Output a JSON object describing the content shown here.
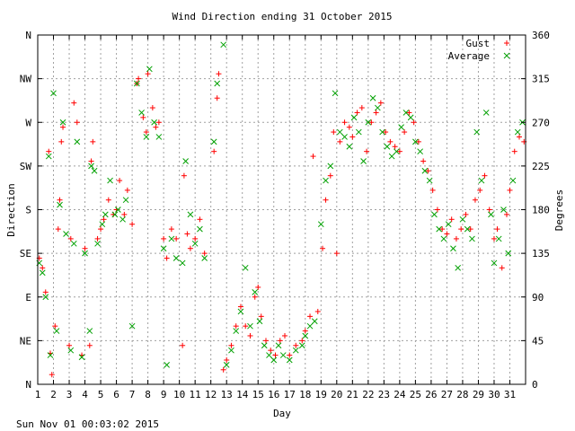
{
  "chart_data": {
    "type": "scatter",
    "title": "Wind Direction ending 31 October 2015",
    "xlabel": "Day",
    "ylabel_left": "Direction",
    "ylabel_right": "Degrees",
    "timestamp": "Sun Nov 01 00:03:02 2015",
    "xlim": [
      1,
      32
    ],
    "ylim": [
      0,
      360
    ],
    "x_ticks": [
      "1",
      "2",
      "3",
      "4",
      "5",
      "6",
      "7",
      "8",
      "9",
      "10",
      "11",
      "12",
      "13",
      "14",
      "15",
      "16",
      "17",
      "18",
      "19",
      "20",
      "21",
      "22",
      "23",
      "24",
      "25",
      "26",
      "27",
      "28",
      "29",
      "30",
      "31"
    ],
    "y_left_ticks": [
      "N",
      "NE",
      "E",
      "SE",
      "S",
      "SW",
      "W",
      "NW",
      "N"
    ],
    "y_right_ticks": [
      "0",
      "45",
      "90",
      "135",
      "180",
      "225",
      "270",
      "315",
      "360"
    ],
    "grid": true,
    "legend_position": "top-right",
    "colors": {
      "gust": "#ff0000",
      "average": "#00a000"
    },
    "series": [
      {
        "name": "Gust",
        "marker": "+",
        "points": [
          [
            1.1,
            130
          ],
          [
            1.3,
            120
          ],
          [
            1.5,
            95
          ],
          [
            1.7,
            240
          ],
          [
            1.8,
            32
          ],
          [
            1.9,
            10
          ],
          [
            2.1,
            60
          ],
          [
            2.3,
            160
          ],
          [
            2.4,
            190
          ],
          [
            2.5,
            250
          ],
          [
            2.6,
            265
          ],
          [
            3.0,
            40
          ],
          [
            3.1,
            150
          ],
          [
            3.3,
            290
          ],
          [
            3.5,
            270
          ],
          [
            3.8,
            30
          ],
          [
            4.0,
            140
          ],
          [
            4.3,
            40
          ],
          [
            4.4,
            230
          ],
          [
            4.5,
            250
          ],
          [
            4.8,
            150
          ],
          [
            5.0,
            160
          ],
          [
            5.2,
            170
          ],
          [
            5.5,
            190
          ],
          [
            5.8,
            175
          ],
          [
            6.0,
            180
          ],
          [
            6.2,
            210
          ],
          [
            6.5,
            175
          ],
          [
            6.7,
            200
          ],
          [
            7.0,
            165
          ],
          [
            7.3,
            310
          ],
          [
            7.4,
            315
          ],
          [
            7.7,
            275
          ],
          [
            7.9,
            260
          ],
          [
            8.0,
            320
          ],
          [
            8.3,
            285
          ],
          [
            8.5,
            265
          ],
          [
            8.7,
            270
          ],
          [
            9.0,
            150
          ],
          [
            9.2,
            130
          ],
          [
            9.5,
            160
          ],
          [
            9.8,
            150
          ],
          [
            10.2,
            40
          ],
          [
            10.3,
            215
          ],
          [
            10.5,
            155
          ],
          [
            10.7,
            140
          ],
          [
            11.0,
            150
          ],
          [
            11.3,
            170
          ],
          [
            11.6,
            135
          ],
          [
            12.2,
            240
          ],
          [
            12.4,
            295
          ],
          [
            12.5,
            320
          ],
          [
            12.8,
            15
          ],
          [
            13.0,
            25
          ],
          [
            13.3,
            40
          ],
          [
            13.6,
            60
          ],
          [
            13.9,
            80
          ],
          [
            14.2,
            60
          ],
          [
            14.5,
            50
          ],
          [
            14.8,
            90
          ],
          [
            15.0,
            100
          ],
          [
            15.2,
            70
          ],
          [
            15.5,
            45
          ],
          [
            15.8,
            35
          ],
          [
            16.1,
            30
          ],
          [
            16.4,
            45
          ],
          [
            16.7,
            50
          ],
          [
            17.0,
            30
          ],
          [
            17.4,
            40
          ],
          [
            17.8,
            45
          ],
          [
            18.0,
            55
          ],
          [
            18.3,
            70
          ],
          [
            18.5,
            235
          ],
          [
            18.8,
            75
          ],
          [
            19.1,
            140
          ],
          [
            19.3,
            190
          ],
          [
            19.6,
            215
          ],
          [
            19.8,
            260
          ],
          [
            20.0,
            135
          ],
          [
            20.2,
            250
          ],
          [
            20.5,
            270
          ],
          [
            20.8,
            265
          ],
          [
            21.0,
            255
          ],
          [
            21.3,
            280
          ],
          [
            21.6,
            285
          ],
          [
            21.9,
            240
          ],
          [
            22.2,
            270
          ],
          [
            22.5,
            280
          ],
          [
            22.8,
            290
          ],
          [
            23.1,
            260
          ],
          [
            23.4,
            250
          ],
          [
            23.7,
            245
          ],
          [
            24.0,
            240
          ],
          [
            24.3,
            260
          ],
          [
            24.6,
            280
          ],
          [
            24.9,
            270
          ],
          [
            25.2,
            250
          ],
          [
            25.5,
            230
          ],
          [
            25.8,
            220
          ],
          [
            26.1,
            200
          ],
          [
            26.4,
            180
          ],
          [
            26.7,
            160
          ],
          [
            27.0,
            155
          ],
          [
            27.3,
            170
          ],
          [
            27.6,
            150
          ],
          [
            27.9,
            160
          ],
          [
            28.2,
            175
          ],
          [
            28.5,
            160
          ],
          [
            28.8,
            190
          ],
          [
            29.1,
            200
          ],
          [
            29.4,
            215
          ],
          [
            29.7,
            180
          ],
          [
            30.0,
            150
          ],
          [
            30.2,
            160
          ],
          [
            30.5,
            120
          ],
          [
            30.8,
            175
          ],
          [
            31.0,
            200
          ],
          [
            31.3,
            240
          ],
          [
            31.6,
            255
          ],
          [
            31.9,
            250
          ]
        ]
      },
      {
        "name": "Average",
        "marker": "x",
        "points": [
          [
            1.1,
            125
          ],
          [
            1.3,
            115
          ],
          [
            1.5,
            90
          ],
          [
            1.7,
            235
          ],
          [
            1.8,
            30
          ],
          [
            2.0,
            300
          ],
          [
            2.2,
            55
          ],
          [
            2.4,
            185
          ],
          [
            2.6,
            270
          ],
          [
            2.8,
            155
          ],
          [
            3.1,
            35
          ],
          [
            3.3,
            145
          ],
          [
            3.5,
            250
          ],
          [
            3.8,
            28
          ],
          [
            4.0,
            135
          ],
          [
            4.3,
            55
          ],
          [
            4.4,
            225
          ],
          [
            4.6,
            220
          ],
          [
            4.8,
            145
          ],
          [
            5.1,
            165
          ],
          [
            5.3,
            175
          ],
          [
            5.6,
            210
          ],
          [
            5.9,
            175
          ],
          [
            6.1,
            180
          ],
          [
            6.4,
            170
          ],
          [
            6.6,
            190
          ],
          [
            7.0,
            60
          ],
          [
            7.3,
            310
          ],
          [
            7.6,
            280
          ],
          [
            7.9,
            255
          ],
          [
            8.1,
            325
          ],
          [
            8.4,
            270
          ],
          [
            8.7,
            255
          ],
          [
            9.0,
            140
          ],
          [
            9.2,
            20
          ],
          [
            9.5,
            150
          ],
          [
            9.8,
            130
          ],
          [
            10.2,
            125
          ],
          [
            10.4,
            230
          ],
          [
            10.7,
            175
          ],
          [
            11.0,
            145
          ],
          [
            11.3,
            160
          ],
          [
            11.6,
            130
          ],
          [
            12.2,
            250
          ],
          [
            12.4,
            310
          ],
          [
            12.8,
            350
          ],
          [
            13.0,
            20
          ],
          [
            13.3,
            35
          ],
          [
            13.6,
            55
          ],
          [
            13.9,
            75
          ],
          [
            14.2,
            120
          ],
          [
            14.5,
            60
          ],
          [
            14.8,
            95
          ],
          [
            15.1,
            65
          ],
          [
            15.4,
            40
          ],
          [
            15.7,
            30
          ],
          [
            16.0,
            25
          ],
          [
            16.3,
            40
          ],
          [
            16.6,
            30
          ],
          [
            17.0,
            25
          ],
          [
            17.4,
            35
          ],
          [
            17.8,
            40
          ],
          [
            18.0,
            50
          ],
          [
            18.3,
            60
          ],
          [
            18.6,
            65
          ],
          [
            19.0,
            165
          ],
          [
            19.3,
            210
          ],
          [
            19.6,
            225
          ],
          [
            19.9,
            300
          ],
          [
            20.2,
            260
          ],
          [
            20.5,
            255
          ],
          [
            20.8,
            245
          ],
          [
            21.1,
            275
          ],
          [
            21.4,
            260
          ],
          [
            21.7,
            230
          ],
          [
            22.0,
            270
          ],
          [
            22.3,
            295
          ],
          [
            22.6,
            285
          ],
          [
            22.9,
            260
          ],
          [
            23.2,
            245
          ],
          [
            23.5,
            235
          ],
          [
            23.8,
            240
          ],
          [
            24.1,
            265
          ],
          [
            24.4,
            280
          ],
          [
            24.7,
            275
          ],
          [
            25.0,
            250
          ],
          [
            25.3,
            240
          ],
          [
            25.6,
            220
          ],
          [
            25.9,
            210
          ],
          [
            26.2,
            175
          ],
          [
            26.5,
            160
          ],
          [
            26.8,
            150
          ],
          [
            27.1,
            165
          ],
          [
            27.4,
            140
          ],
          [
            27.7,
            120
          ],
          [
            28.0,
            170
          ],
          [
            28.3,
            160
          ],
          [
            28.6,
            150
          ],
          [
            28.9,
            260
          ],
          [
            29.2,
            210
          ],
          [
            29.5,
            280
          ],
          [
            29.8,
            175
          ],
          [
            30.0,
            125
          ],
          [
            30.3,
            150
          ],
          [
            30.6,
            180
          ],
          [
            30.9,
            135
          ],
          [
            31.2,
            210
          ],
          [
            31.5,
            260
          ],
          [
            31.8,
            270
          ]
        ]
      }
    ]
  }
}
